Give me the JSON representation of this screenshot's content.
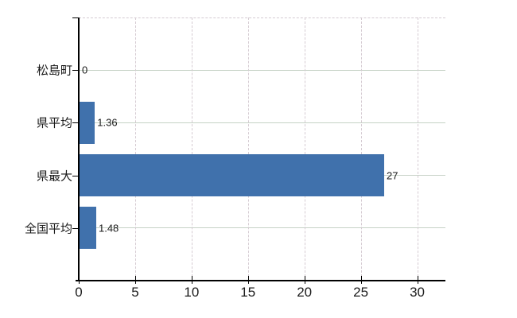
{
  "chart_data": {
    "type": "bar",
    "orientation": "horizontal",
    "title": "",
    "categories": [
      "松島町",
      "県平均",
      "県最大",
      "全国平均"
    ],
    "values": [
      0,
      1.36,
      27,
      1.48
    ],
    "value_labels": [
      "0",
      "1.36",
      "27",
      "1.48"
    ],
    "x_ticks": [
      0,
      5,
      10,
      15,
      20,
      25,
      30
    ],
    "x_tick_labels": [
      "0",
      "5",
      "10",
      "15",
      "20",
      "25",
      "30"
    ],
    "xlim": [
      0,
      32.5
    ],
    "grid": true,
    "legend": false
  },
  "style": {
    "bar_color": "#4071ac",
    "axis_color": "#000000",
    "grid_color_h": "#c6d2c6",
    "grid_color_v": "#d5cbd2",
    "text_color": "#1a1a1a",
    "background_color": "#ffffff"
  }
}
